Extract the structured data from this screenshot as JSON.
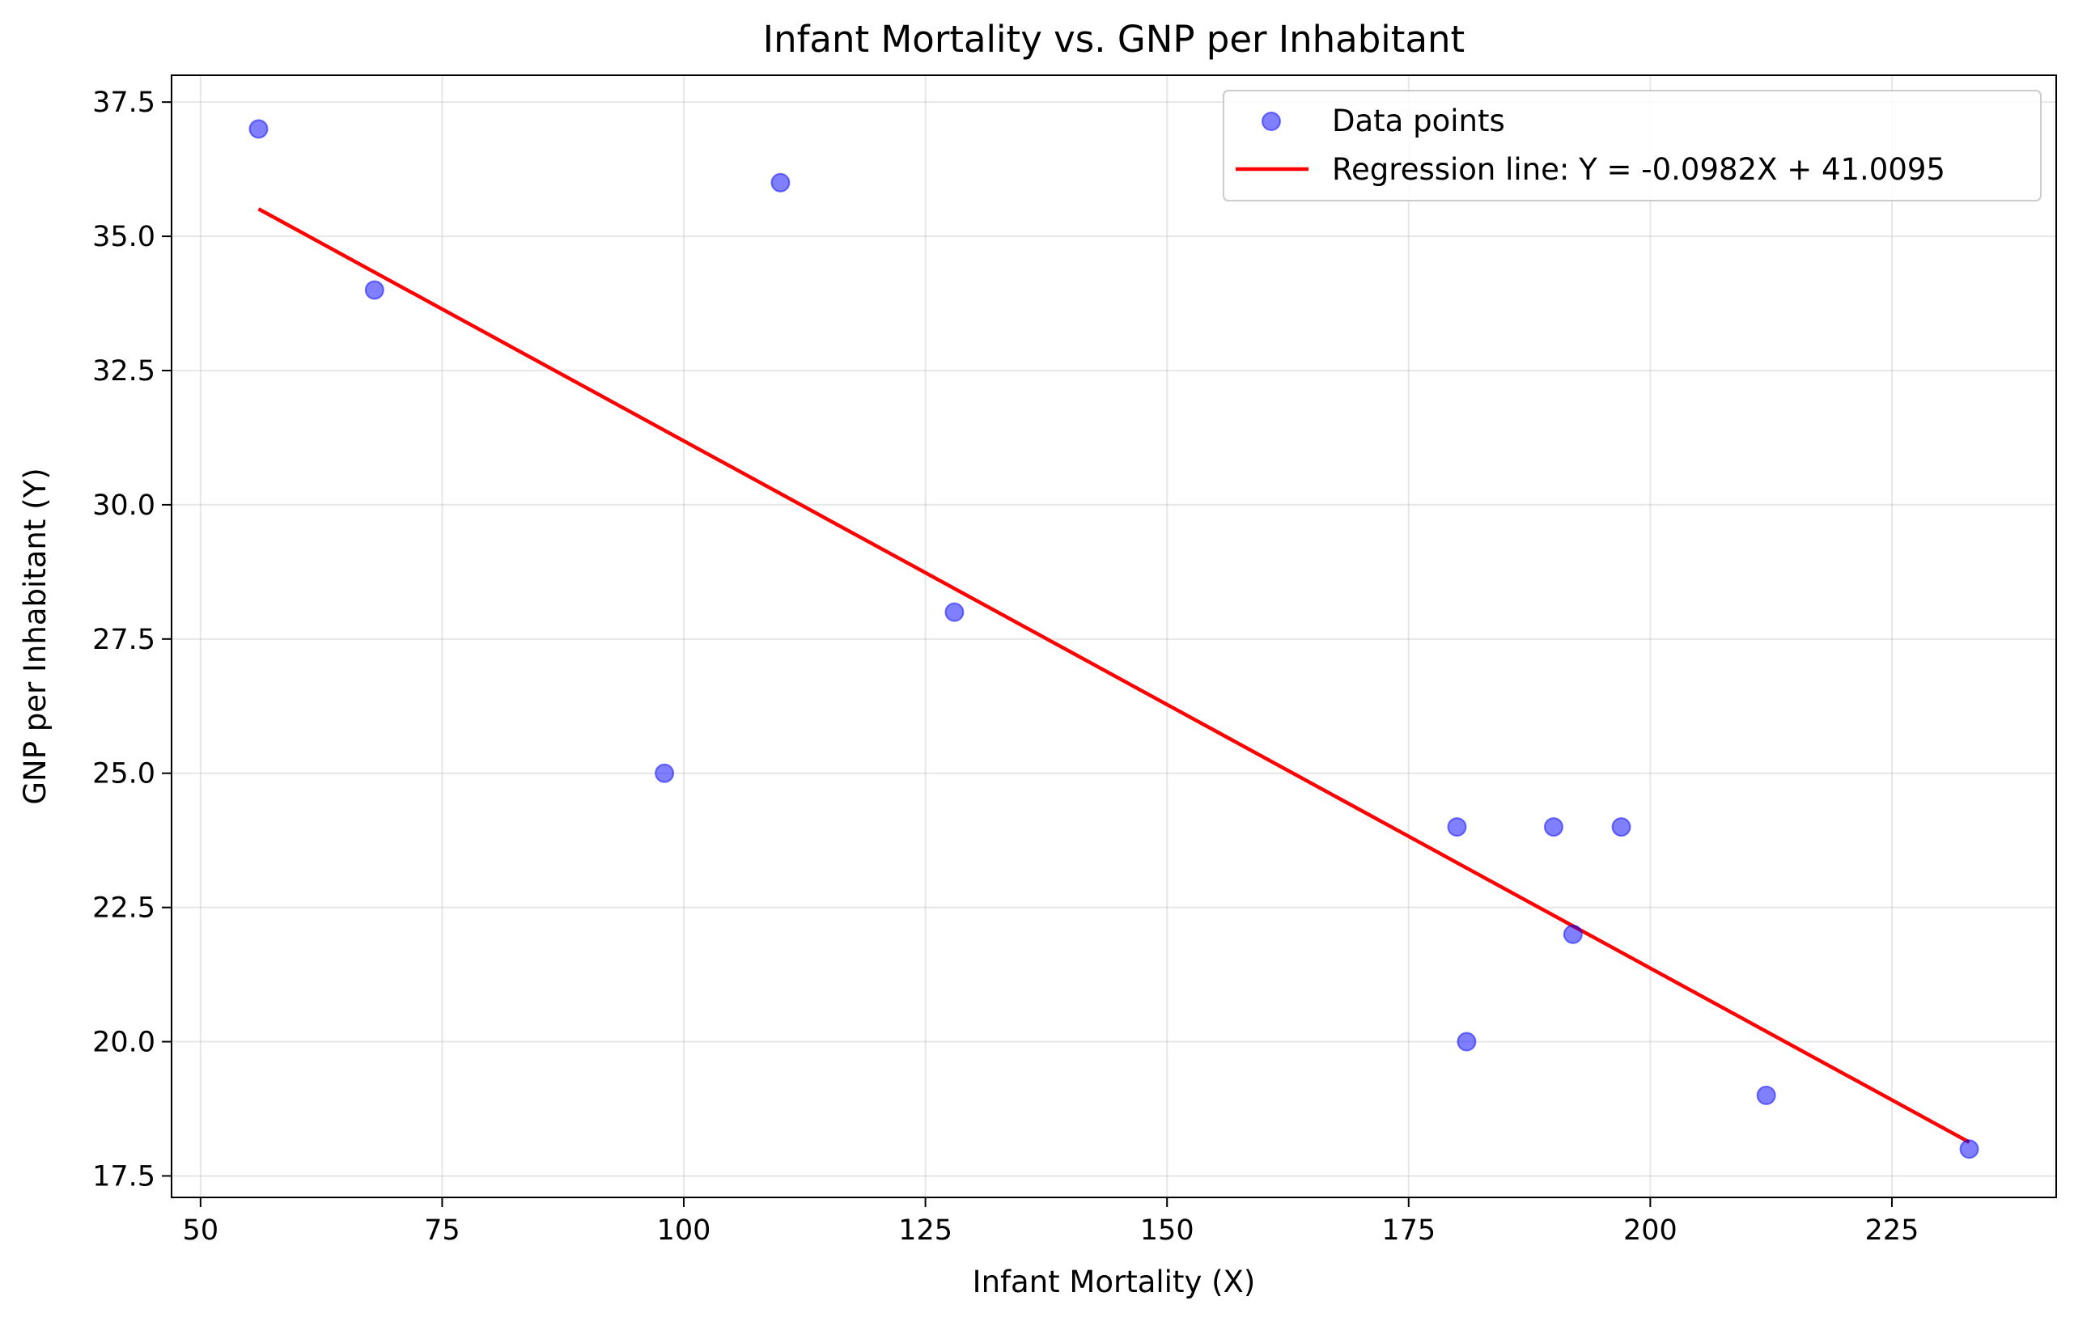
{
  "chart_data": {
    "type": "scatter",
    "title": "Infant Mortality vs. GNP per Inhabitant",
    "xlabel": "Infant Mortality (X)",
    "ylabel": "GNP per Inhabitant (Y)",
    "xlim": [
      47,
      242
    ],
    "ylim": [
      17.1,
      38.0
    ],
    "xticks": [
      50,
      75,
      100,
      125,
      150,
      175,
      200,
      225
    ],
    "yticks": [
      17.5,
      20.0,
      22.5,
      25.0,
      27.5,
      30.0,
      32.5,
      35.0,
      37.5
    ],
    "xtick_labels": [
      "50",
      "75",
      "100",
      "125",
      "150",
      "175",
      "200",
      "225"
    ],
    "ytick_labels": [
      "17.5",
      "20.0",
      "22.5",
      "25.0",
      "27.5",
      "30.0",
      "32.5",
      "35.0",
      "37.5"
    ],
    "grid": true,
    "legend_position": "top-right",
    "series": [
      {
        "name": "Data points",
        "kind": "scatter",
        "color": "#0000ff",
        "x": [
          56,
          68,
          98,
          110,
          128,
          180,
          181,
          190,
          192,
          197,
          212,
          233
        ],
        "y": [
          37,
          34,
          25,
          36,
          28,
          24,
          20,
          24,
          22,
          24,
          19,
          18
        ]
      },
      {
        "name": "Regression line: Y = -0.0982X + 41.0095",
        "kind": "line",
        "color": "#ff0000",
        "slope": -0.0982,
        "intercept": 41.0095,
        "x_range": [
          56,
          233
        ]
      }
    ]
  }
}
